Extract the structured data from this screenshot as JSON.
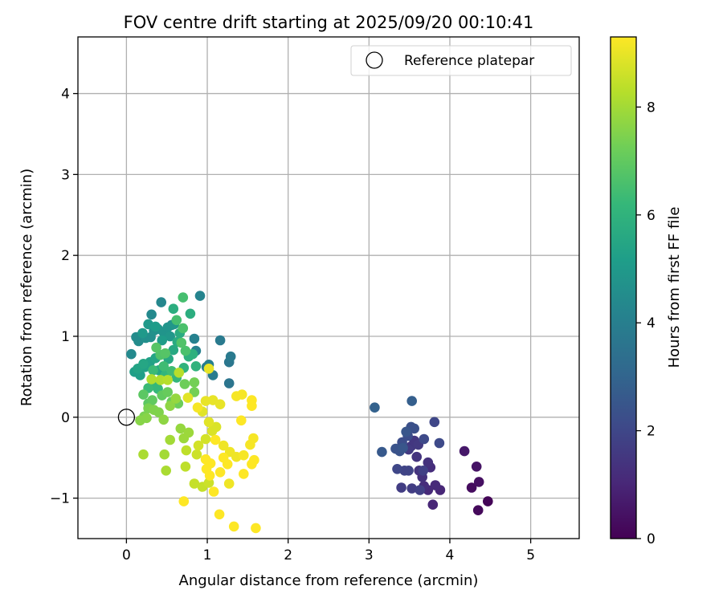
{
  "chart_data": {
    "type": "scatter",
    "title": "FOV centre drift starting at 2025/09/20 00:10:41",
    "xlabel": "Angular distance from reference (arcmin)",
    "ylabel": "Rotation from reference (arcmin)",
    "xlim": [
      -0.6,
      5.6
    ],
    "ylim": [
      -1.5,
      4.7
    ],
    "xticks": [
      0,
      1,
      2,
      3,
      4,
      5
    ],
    "yticks": [
      -1,
      0,
      1,
      2,
      3,
      4
    ],
    "xtick_labels": [
      "0",
      "1",
      "2",
      "3",
      "4",
      "5"
    ],
    "ytick_labels": [
      "−1",
      "0",
      "1",
      "2",
      "3",
      "4"
    ],
    "grid": true,
    "legend": {
      "position": "top-right",
      "entries": [
        "Reference platepar"
      ]
    },
    "reference_point": {
      "x": 0,
      "y": 0,
      "label": "Reference platepar"
    },
    "colorbar": {
      "label": "Hours from first FF file",
      "range": [
        0,
        9.3
      ],
      "ticks": [
        0,
        2,
        4,
        6,
        8
      ],
      "tick_labels": [
        "0",
        "2",
        "4",
        "6",
        "8"
      ],
      "colormap": "viridis",
      "colors": [
        "#440154",
        "#482878",
        "#3e4989",
        "#31688e",
        "#26828e",
        "#1f9e89",
        "#35b779",
        "#6ece58",
        "#b5de2b",
        "#fde725"
      ]
    },
    "points": [
      [
        4.47,
        -1.04,
        0.1
      ],
      [
        4.35,
        -1.15,
        0.2
      ],
      [
        4.27,
        -0.87,
        0.3
      ],
      [
        4.36,
        -0.8,
        0.4
      ],
      [
        4.33,
        -0.61,
        0.5
      ],
      [
        4.18,
        -0.42,
        0.6
      ],
      [
        3.88,
        -0.9,
        1.0
      ],
      [
        3.79,
        -1.08,
        1.0
      ],
      [
        3.73,
        -0.9,
        1.1
      ],
      [
        3.82,
        -0.84,
        1.1
      ],
      [
        3.68,
        -0.85,
        1.2
      ],
      [
        3.76,
        -0.62,
        1.2
      ],
      [
        3.66,
        -0.74,
        1.3
      ],
      [
        3.73,
        -0.56,
        1.3
      ],
      [
        3.62,
        -0.66,
        1.4
      ],
      [
        3.59,
        -0.49,
        1.4
      ],
      [
        3.52,
        -0.36,
        1.5
      ],
      [
        3.56,
        -0.29,
        1.5
      ],
      [
        3.49,
        -0.4,
        1.6
      ],
      [
        3.61,
        -0.34,
        1.6
      ],
      [
        3.4,
        -0.87,
        1.7
      ],
      [
        3.53,
        -0.88,
        1.7
      ],
      [
        3.63,
        -0.9,
        1.8
      ],
      [
        3.67,
        -0.66,
        1.8
      ],
      [
        3.44,
        -0.66,
        1.9
      ],
      [
        3.49,
        -0.66,
        1.9
      ],
      [
        3.35,
        -0.64,
        2.0
      ],
      [
        3.81,
        -0.06,
        2.0
      ],
      [
        3.87,
        -0.32,
        2.1
      ],
      [
        3.68,
        -0.27,
        2.1
      ],
      [
        3.41,
        -0.31,
        2.2
      ],
      [
        3.48,
        -0.23,
        2.2
      ],
      [
        3.56,
        -0.14,
        2.3
      ],
      [
        3.52,
        -0.12,
        2.3
      ],
      [
        3.38,
        -0.42,
        2.4
      ],
      [
        3.33,
        -0.39,
        2.4
      ],
      [
        3.42,
        -0.38,
        2.5
      ],
      [
        3.46,
        -0.18,
        2.5
      ],
      [
        3.16,
        -0.43,
        2.6
      ],
      [
        3.53,
        0.2,
        2.8
      ],
      [
        3.07,
        0.12,
        2.9
      ],
      [
        1.27,
        0.42,
        3.6
      ],
      [
        1.27,
        0.68,
        3.7
      ],
      [
        1.29,
        0.75,
        3.8
      ],
      [
        1.16,
        0.95,
        3.8
      ],
      [
        1.07,
        0.52,
        3.9
      ],
      [
        0.99,
        0.62,
        3.9
      ],
      [
        1.02,
        0.65,
        4.0
      ],
      [
        0.86,
        0.82,
        4.1
      ],
      [
        0.84,
        0.97,
        4.1
      ],
      [
        0.91,
        1.5,
        4.2
      ],
      [
        0.56,
        1.14,
        4.3
      ],
      [
        0.43,
        1.42,
        4.3
      ],
      [
        0.31,
        1.27,
        4.4
      ],
      [
        0.06,
        0.78,
        4.4
      ],
      [
        0.15,
        0.94,
        4.5
      ],
      [
        0.12,
        0.99,
        4.5
      ],
      [
        0.24,
        0.98,
        4.6
      ],
      [
        0.3,
        0.99,
        4.6
      ],
      [
        0.34,
        1.07,
        4.7
      ],
      [
        0.39,
        1.09,
        4.7
      ],
      [
        0.46,
        1.05,
        4.8
      ],
      [
        0.51,
        1.11,
        4.8
      ],
      [
        0.54,
        1.0,
        4.9
      ],
      [
        0.59,
        1.15,
        4.9
      ],
      [
        0.2,
        1.04,
        5.0
      ],
      [
        0.27,
        1.15,
        5.0
      ],
      [
        0.36,
        1.12,
        5.1
      ],
      [
        0.44,
        0.95,
        5.1
      ],
      [
        0.1,
        0.56,
        5.2
      ],
      [
        0.17,
        0.52,
        5.2
      ],
      [
        0.23,
        0.62,
        5.3
      ],
      [
        0.29,
        0.68,
        5.3
      ],
      [
        0.36,
        0.73,
        5.4
      ],
      [
        0.14,
        0.6,
        5.4
      ],
      [
        0.21,
        0.66,
        5.5
      ],
      [
        0.4,
        0.58,
        5.5
      ],
      [
        0.52,
        0.72,
        5.6
      ],
      [
        0.58,
        0.83,
        5.6
      ],
      [
        0.63,
        0.93,
        5.7
      ],
      [
        0.66,
        1.04,
        5.7
      ],
      [
        0.79,
        1.28,
        5.8
      ],
      [
        0.58,
        1.34,
        5.8
      ],
      [
        0.77,
        0.75,
        5.9
      ],
      [
        0.82,
        0.78,
        5.9
      ],
      [
        0.86,
        0.63,
        6.0
      ],
      [
        0.71,
        0.61,
        6.0
      ],
      [
        0.62,
        0.49,
        6.1
      ],
      [
        0.48,
        0.52,
        6.1
      ],
      [
        0.33,
        0.41,
        6.2
      ],
      [
        0.39,
        0.35,
        6.2
      ],
      [
        0.27,
        0.36,
        6.3
      ],
      [
        0.33,
        0.58,
        6.3
      ],
      [
        0.46,
        0.63,
        6.4
      ],
      [
        0.56,
        0.57,
        6.4
      ],
      [
        0.7,
        1.48,
        6.5
      ],
      [
        0.62,
        1.2,
        6.5
      ],
      [
        0.7,
        1.1,
        6.6
      ],
      [
        0.73,
        0.82,
        6.6
      ],
      [
        0.68,
        0.92,
        6.7
      ],
      [
        0.42,
        0.77,
        6.7
      ],
      [
        0.48,
        0.79,
        6.8
      ],
      [
        0.37,
        0.86,
        6.8
      ],
      [
        0.21,
        0.28,
        6.9
      ],
      [
        0.27,
        0.17,
        6.9
      ],
      [
        0.32,
        0.21,
        7.0
      ],
      [
        0.44,
        0.27,
        7.0
      ],
      [
        0.51,
        0.31,
        7.1
      ],
      [
        0.56,
        0.19,
        7.1
      ],
      [
        0.64,
        0.17,
        7.2
      ],
      [
        0.72,
        0.41,
        7.2
      ],
      [
        0.84,
        0.31,
        7.3
      ],
      [
        0.84,
        0.43,
        7.3
      ],
      [
        0.22,
        0.01,
        7.4
      ],
      [
        0.27,
        0.11,
        7.4
      ],
      [
        0.34,
        0.09,
        7.5
      ],
      [
        0.4,
        0.06,
        7.5
      ],
      [
        0.17,
        -0.04,
        7.6
      ],
      [
        0.25,
        -0.01,
        7.6
      ],
      [
        0.46,
        -0.03,
        7.7
      ],
      [
        0.54,
        0.14,
        7.7
      ],
      [
        0.61,
        0.23,
        7.8
      ],
      [
        0.67,
        -0.14,
        7.8
      ],
      [
        0.71,
        -0.26,
        7.9
      ],
      [
        0.77,
        -0.19,
        7.9
      ],
      [
        0.54,
        -0.28,
        8.0
      ],
      [
        0.47,
        -0.46,
        8.0
      ],
      [
        0.49,
        -0.66,
        8.1
      ],
      [
        0.21,
        -0.46,
        8.1
      ],
      [
        0.31,
        0.47,
        8.2
      ],
      [
        0.42,
        0.46,
        8.2
      ],
      [
        0.51,
        0.46,
        8.3
      ],
      [
        0.65,
        0.55,
        8.3
      ],
      [
        0.74,
        -0.41,
        8.4
      ],
      [
        0.73,
        -0.61,
        8.4
      ],
      [
        0.84,
        -0.82,
        8.5
      ],
      [
        0.94,
        -0.86,
        8.5
      ],
      [
        1.02,
        -0.81,
        8.6
      ],
      [
        0.87,
        -0.46,
        8.6
      ],
      [
        0.89,
        -0.35,
        8.7
      ],
      [
        0.98,
        -0.27,
        8.7
      ],
      [
        1.06,
        -0.17,
        8.8
      ],
      [
        1.11,
        -0.12,
        8.8
      ],
      [
        1.02,
        -0.06,
        8.9
      ],
      [
        0.94,
        0.07,
        8.9
      ],
      [
        1.07,
        0.21,
        9.0
      ],
      [
        0.98,
        0.2,
        9.0
      ],
      [
        1.16,
        0.16,
        9.0
      ],
      [
        1.2,
        -0.35,
        9.1
      ],
      [
        1.28,
        -0.43,
        9.1
      ],
      [
        1.36,
        -0.49,
        9.1
      ],
      [
        1.27,
        -0.82,
        9.1
      ],
      [
        1.45,
        -0.47,
        9.2
      ],
      [
        1.53,
        -0.34,
        9.2
      ],
      [
        1.57,
        -0.26,
        9.2
      ],
      [
        1.43,
        0.28,
        9.2
      ],
      [
        1.36,
        0.26,
        9.2
      ],
      [
        1.55,
        0.21,
        9.3
      ],
      [
        1.55,
        0.14,
        9.3
      ],
      [
        1.42,
        -0.04,
        9.3
      ],
      [
        1.45,
        -0.7,
        9.3
      ],
      [
        1.55,
        -0.58,
        9.3
      ],
      [
        1.58,
        -0.53,
        9.3
      ],
      [
        1.16,
        -0.68,
        9.3
      ],
      [
        1.04,
        -0.57,
        9.3
      ],
      [
        0.99,
        -0.64,
        9.3
      ],
      [
        1.03,
        -0.72,
        9.3
      ],
      [
        0.98,
        -0.52,
        9.3
      ],
      [
        1.15,
        -1.2,
        9.3
      ],
      [
        1.33,
        -1.35,
        9.3
      ],
      [
        1.6,
        -1.37,
        9.3
      ],
      [
        0.71,
        -1.04,
        9.3
      ],
      [
        1.25,
        -0.58,
        9.3
      ],
      [
        1.08,
        -0.92,
        9.3
      ],
      [
        1.02,
        0.6,
        9.0
      ],
      [
        0.76,
        0.24,
        8.9
      ],
      [
        0.88,
        0.12,
        9.2
      ],
      [
        1.1,
        -0.28,
        9.3
      ],
      [
        1.2,
        -0.5,
        9.3
      ]
    ]
  }
}
